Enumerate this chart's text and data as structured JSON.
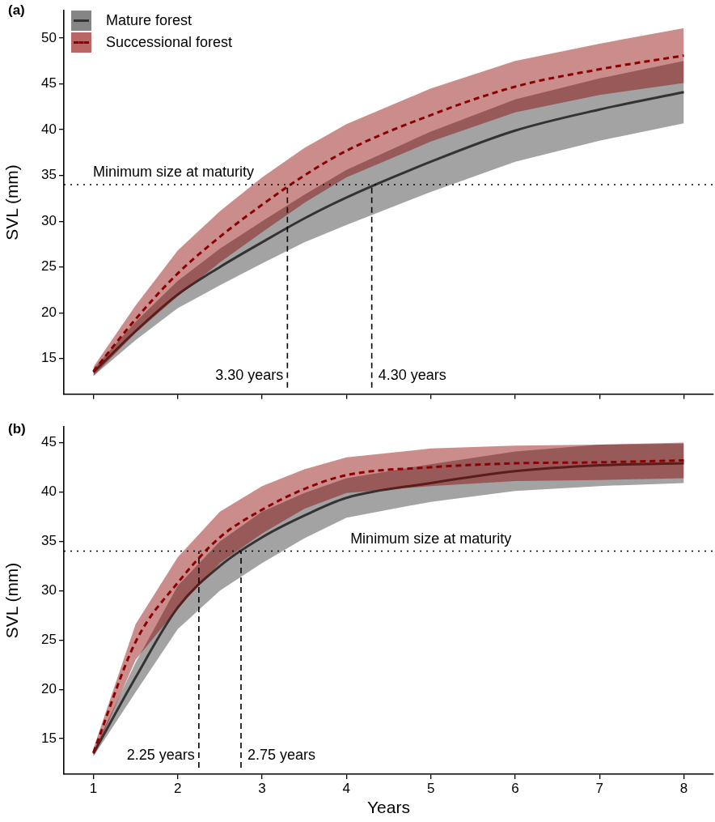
{
  "chart_data": [
    {
      "type": "line",
      "title": "(a)",
      "ylabel": "SVL (mm)",
      "x": [
        1,
        1.5,
        2,
        2.5,
        3,
        3.5,
        4,
        5,
        6,
        7,
        8
      ],
      "series": [
        {
          "name": "Mature forest",
          "color": "#333333",
          "line_style": "solid",
          "values": [
            13.5,
            18.0,
            22.0,
            25.0,
            27.7,
            30.3,
            32.6,
            36.5,
            39.9,
            42.2,
            44.1
          ],
          "lower": [
            13.1,
            17.0,
            20.5,
            23.0,
            25.4,
            27.7,
            29.6,
            33.2,
            36.5,
            38.8,
            40.7
          ],
          "upper": [
            13.9,
            19.0,
            23.5,
            27.0,
            30.0,
            32.9,
            35.6,
            39.8,
            43.3,
            45.6,
            47.5
          ]
        },
        {
          "name": "Successional forest",
          "color": "#8b0000",
          "line_style": "dashed",
          "values": [
            13.6,
            19.3,
            24.3,
            28.3,
            31.8,
            35.0,
            37.7,
            41.6,
            44.7,
            46.6,
            48.1
          ],
          "lower": [
            13.1,
            17.8,
            21.8,
            25.5,
            28.8,
            32.0,
            34.8,
            38.7,
            41.9,
            43.8,
            45.1
          ],
          "upper": [
            14.1,
            20.8,
            26.8,
            31.1,
            34.8,
            38.0,
            40.6,
            44.5,
            47.5,
            49.4,
            51.1
          ]
        }
      ],
      "xlim": [
        0.65,
        8.35
      ],
      "xticks": [
        1,
        2,
        3,
        4,
        5,
        6,
        7,
        8
      ],
      "ylim": [
        11.1,
        53
      ],
      "yticks": [
        15,
        20,
        25,
        30,
        35,
        40,
        45,
        50
      ],
      "tick_labels": "y",
      "grid": false,
      "legend": "top left",
      "marker": "none",
      "ref_lines": [
        {
          "axis": "y",
          "value": 34,
          "line_style": "dotted"
        },
        {
          "axis": "x",
          "value": 3.3,
          "label": "3.30 years",
          "line_style": "dashed"
        },
        {
          "axis": "x",
          "value": 4.3,
          "label": "4.30 years",
          "line_style": "dashed"
        }
      ],
      "annotations": [
        {
          "text": "Minimum size at maturity",
          "x": 1.95,
          "y": 34
        }
      ]
    },
    {
      "type": "line",
      "title": "(b)",
      "xlabel": "Years",
      "ylabel": "SVL (mm)",
      "x": [
        1,
        1.5,
        2,
        2.5,
        3,
        3.5,
        4,
        5,
        6,
        7,
        8
      ],
      "series": [
        {
          "color": "#333333",
          "line_style": "solid",
          "values": [
            13.5,
            21.2,
            28.3,
            32.5,
            35.4,
            37.6,
            39.4,
            40.9,
            42.1,
            42.7,
            42.9
          ],
          "lower": [
            13.2,
            19.7,
            26.1,
            30.0,
            32.8,
            35.3,
            37.4,
            39.0,
            40.1,
            40.6,
            40.9
          ],
          "upper": [
            13.8,
            22.7,
            30.5,
            35.0,
            38.0,
            39.9,
            41.4,
            42.8,
            44.1,
            44.8,
            44.9
          ]
        },
        {
          "color": "#8b0000",
          "line_style": "dashed",
          "values": [
            13.6,
            24.8,
            30.8,
            35.4,
            38.2,
            40.3,
            41.7,
            42.5,
            42.9,
            43.0,
            43.2
          ],
          "lower": [
            13.2,
            23.0,
            28.2,
            32.8,
            35.8,
            38.3,
            39.9,
            40.6,
            41.1,
            41.2,
            41.4
          ],
          "upper": [
            14.0,
            26.6,
            33.4,
            38.0,
            40.6,
            42.3,
            43.5,
            44.4,
            44.7,
            44.8,
            45.0
          ]
        }
      ],
      "xlim": [
        0.65,
        8.35
      ],
      "xticks": [
        1,
        2,
        3,
        4,
        5,
        6,
        7,
        8
      ],
      "ylim": [
        11.4,
        46.6
      ],
      "yticks": [
        15,
        20,
        25,
        30,
        35,
        40,
        45
      ],
      "grid": false,
      "legend": false,
      "marker": "none",
      "ref_lines": [
        {
          "axis": "y",
          "value": 34,
          "line_style": "dotted"
        },
        {
          "axis": "x",
          "value": 2.25,
          "label": "2.25 years",
          "line_style": "dashed"
        },
        {
          "axis": "x",
          "value": 2.75,
          "label": "2.75 years",
          "line_style": "dashed"
        }
      ],
      "annotations": [
        {
          "text": "Minimum size at maturity",
          "x": 5.0,
          "y": 34
        }
      ]
    }
  ]
}
